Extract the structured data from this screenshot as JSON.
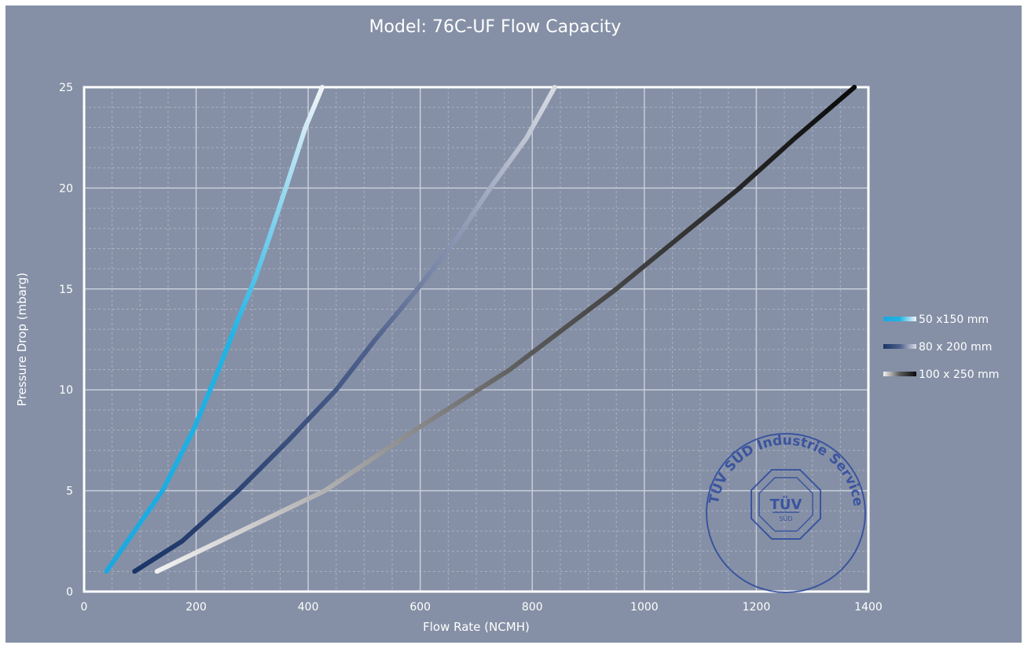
{
  "chart_data": {
    "type": "line",
    "title": "Model: 76C-UF Flow Capacity",
    "xlabel": "Flow Rate (NCMH)",
    "ylabel": "Pressure Drop (mbarg)",
    "xlim": [
      0,
      1400
    ],
    "ylim": [
      0,
      25
    ],
    "x_ticks": [
      "0",
      "200",
      "400",
      "600",
      "800",
      "1000",
      "1200",
      "1400"
    ],
    "y_ticks": [
      "0",
      "5",
      "10",
      "15",
      "20",
      "25"
    ],
    "grid": "on",
    "legend_position": "right",
    "series": [
      {
        "name": "50 x150 mm",
        "gradient": [
          "#1ba8e0",
          "#20b4e6",
          "#f2f4f7"
        ],
        "points": [
          [
            40,
            1
          ],
          [
            85,
            2.8
          ],
          [
            140,
            5
          ],
          [
            195,
            8
          ],
          [
            240,
            11
          ],
          [
            275,
            13.5
          ],
          [
            305,
            15.5
          ],
          [
            330,
            17.5
          ],
          [
            360,
            20
          ],
          [
            395,
            23
          ],
          [
            425,
            25
          ]
        ]
      },
      {
        "name": "80 x 200 mm",
        "gradient": [
          "#1a3566",
          "#4d5f8a",
          "#d8dbe3"
        ],
        "points": [
          [
            90,
            1
          ],
          [
            175,
            2.5
          ],
          [
            275,
            5
          ],
          [
            365,
            7.5
          ],
          [
            450,
            10
          ],
          [
            520,
            12.5
          ],
          [
            595,
            15
          ],
          [
            665,
            17.5
          ],
          [
            725,
            20
          ],
          [
            790,
            22.5
          ],
          [
            840,
            25
          ]
        ]
      },
      {
        "name": "100 x 250 mm",
        "gradient": [
          "#f2f2f2",
          "#5a5a5a",
          "#0a0a0a"
        ],
        "points": [
          [
            130,
            1
          ],
          [
            280,
            3
          ],
          [
            430,
            5
          ],
          [
            590,
            8
          ],
          [
            760,
            11
          ],
          [
            950,
            15
          ],
          [
            1060,
            17.5
          ],
          [
            1170,
            20
          ],
          [
            1270,
            22.5
          ],
          [
            1375,
            25
          ]
        ]
      }
    ]
  },
  "stamp": {
    "text": "TÜV SÜD Industrie Service GmbH",
    "logo": "TÜV",
    "sub": "SÜD",
    "color": "#2e4a9e"
  },
  "colors": {
    "background": "#8590a6",
    "grid_major": "#c8ced9",
    "grid_minor": "#a9b1c1"
  }
}
